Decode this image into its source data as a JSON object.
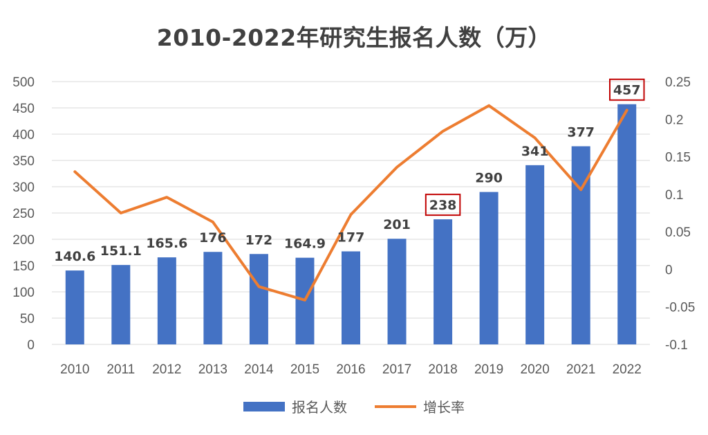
{
  "chart_data": {
    "type": "bar",
    "title": "2010-2022年研究生报名人数（万）",
    "categories": [
      "2010",
      "2011",
      "2012",
      "2013",
      "2014",
      "2015",
      "2016",
      "2017",
      "2018",
      "2019",
      "2020",
      "2021",
      "2022"
    ],
    "series": [
      {
        "name": "报名人数",
        "type": "bar",
        "axis": "left",
        "color": "#4472c4",
        "values": [
          140.6,
          151.1,
          165.6,
          176,
          172,
          164.9,
          177,
          201,
          238,
          290,
          341,
          377,
          457
        ],
        "labels": [
          "140.6",
          "151.1",
          "165.6",
          "176",
          "172",
          "164.9",
          "177",
          "201",
          "238",
          "290",
          "341",
          "377",
          "457"
        ]
      },
      {
        "name": "增长率",
        "type": "line",
        "axis": "right",
        "color": "#ed7d31",
        "values": [
          0.13,
          0.075,
          0.096,
          0.063,
          -0.023,
          -0.041,
          0.073,
          0.136,
          0.184,
          0.218,
          0.175,
          0.106,
          0.212
        ]
      }
    ],
    "ylim_left": [
      0,
      500
    ],
    "ylim_right": [
      -0.1,
      0.25
    ],
    "yticks_left": [
      "0",
      "50",
      "100",
      "150",
      "200",
      "250",
      "300",
      "350",
      "400",
      "450",
      "500"
    ],
    "yticks_right": [
      "-0.1",
      "-0.05",
      "0",
      "0.05",
      "0.1",
      "0.15",
      "0.2",
      "0.25"
    ],
    "highlighted_labels": [
      "2018",
      "2022"
    ],
    "highlight_color": "#c00000",
    "grid": true,
    "legend_position": "bottom"
  }
}
